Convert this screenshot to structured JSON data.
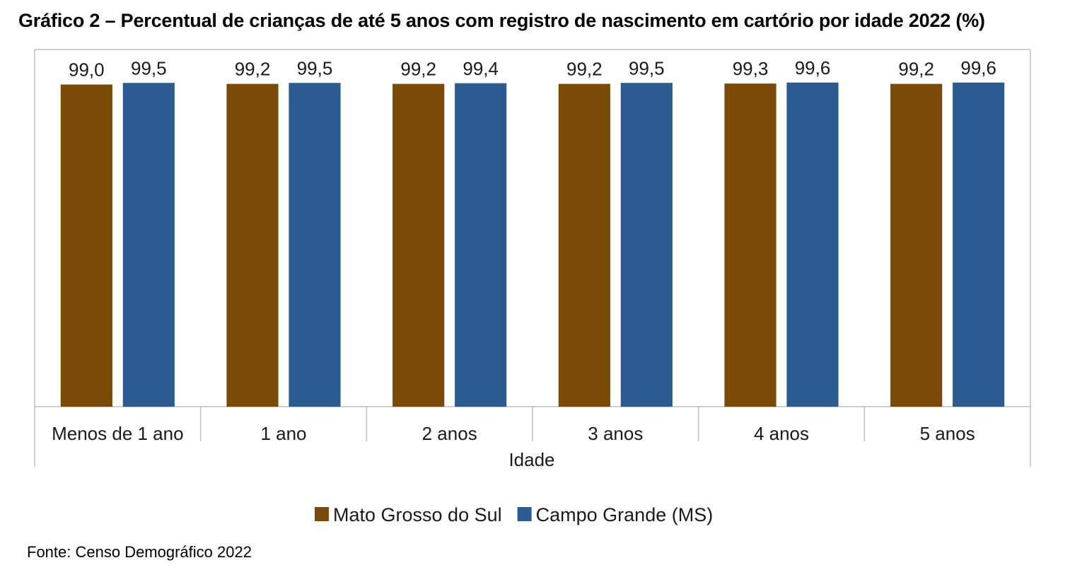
{
  "title": "Gráfico 2 – Percentual de crianças de até 5 anos com registro de nascimento em cartório por idade 2022 (%)",
  "source": "Fonte: Censo Demográfico 2022",
  "colors": {
    "series_1": "#7a4a06",
    "series_2": "#2a5b91",
    "frame": "#bfbfbf"
  },
  "chart_data": {
    "type": "bar",
    "categories": [
      "Menos de 1 ano",
      "1 ano",
      "2 anos",
      "3 anos",
      "4 anos",
      "5 anos"
    ],
    "series": [
      {
        "name": "Mato Grosso do Sul",
        "values": [
          99.0,
          99.2,
          99.2,
          99.2,
          99.3,
          99.2
        ],
        "labels": [
          "99,0",
          "99,2",
          "99,2",
          "99,2",
          "99,3",
          "99,2"
        ]
      },
      {
        "name": "Campo Grande (MS)",
        "values": [
          99.5,
          99.5,
          99.4,
          99.5,
          99.6,
          99.6
        ],
        "labels": [
          "99,5",
          "99,5",
          "99,4",
          "99,5",
          "99,6",
          "99,6"
        ]
      }
    ],
    "xlabel": "Idade",
    "ylabel": "",
    "ylim": [
      0,
      100
    ],
    "grid": false,
    "legend": "bottom"
  }
}
